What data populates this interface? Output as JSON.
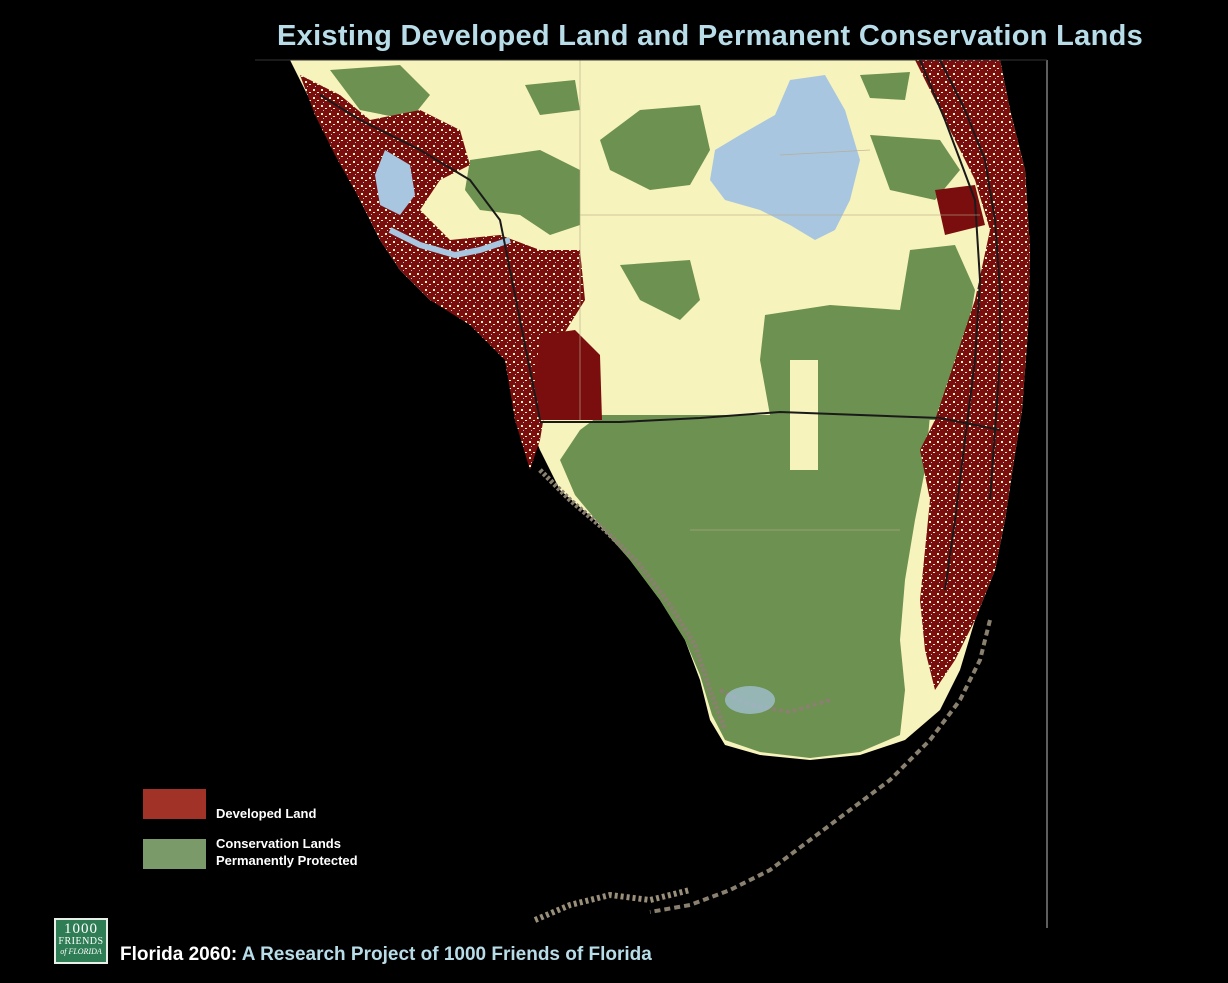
{
  "title": "Existing Developed Land and Permanent Conservation Lands",
  "legend": {
    "items": [
      {
        "label_line1": "Developed Land",
        "label_line2": "",
        "color": "#a03228"
      },
      {
        "label_line1": "Conservation Lands",
        "label_line2": "Permanently Protected",
        "color": "#7a9a6a"
      }
    ]
  },
  "map_colors": {
    "ocean": "#000000",
    "undeveloped": "#f7f3bc",
    "conservation": "#6d9150",
    "developed": "#7a0e0e",
    "water": "#a8c6e0",
    "coast_fringe": "#8a8070",
    "roads": "#1a1a1a"
  },
  "logo": {
    "line1": "1000",
    "line2": "FRIENDS",
    "line3": "of FLORIDA"
  },
  "footer": {
    "lead": "Florida 2060:",
    "rest": " A Research Project of 1000 Friends of Florida"
  }
}
